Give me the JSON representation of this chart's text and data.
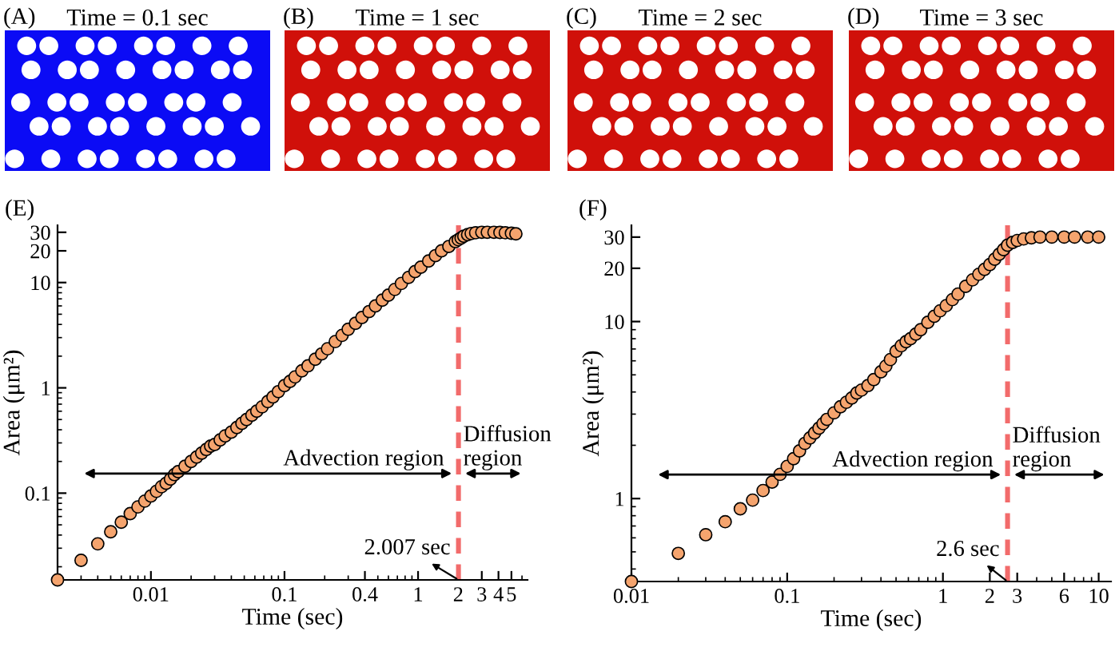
{
  "chart_data": [
    {
      "type": "other",
      "title": "Time = 0.1 sec",
      "annotations": [
        "(A)"
      ],
      "color": "#0b0bf5"
    },
    {
      "type": "other",
      "title": "Time = 1 sec",
      "annotations": [
        "(B)"
      ],
      "color": "#d0100a"
    },
    {
      "type": "other",
      "title": "Time = 2 sec",
      "annotations": [
        "(C)"
      ],
      "color": "#d0100a"
    },
    {
      "type": "other",
      "title": "Time = 3 sec",
      "annotations": [
        "(D)"
      ],
      "color": "#d0100a"
    },
    {
      "type": "scatter",
      "xlabel": "Time (sec)",
      "ylabel": "Area (μm²)",
      "annotations": [
        "(E)",
        "Advection region",
        "Diffusion\nregion"
      ],
      "color": "#f5a46e",
      "marker": "circle",
      "log": "xy",
      "x": [
        0.002,
        0.003,
        0.004,
        0.005,
        0.006,
        0.007,
        0.008,
        0.009,
        0.01,
        0.011,
        0.012,
        0.013,
        0.014,
        0.015,
        0.016,
        0.018,
        0.02,
        0.022,
        0.024,
        0.026,
        0.028,
        0.03,
        0.033,
        0.036,
        0.04,
        0.044,
        0.048,
        0.052,
        0.057,
        0.062,
        0.068,
        0.075,
        0.082,
        0.09,
        0.1,
        0.11,
        0.12,
        0.135,
        0.15,
        0.17,
        0.19,
        0.21,
        0.24,
        0.27,
        0.3,
        0.34,
        0.38,
        0.43,
        0.48,
        0.54,
        0.6,
        0.67,
        0.75,
        0.85,
        0.95,
        1.05,
        1.2,
        1.35,
        1.5,
        1.7,
        1.9,
        2.0,
        2.1,
        2.2,
        2.35,
        2.5,
        2.7,
        3,
        3.3,
        3.7,
        4.1,
        4.5,
        5,
        5.4
      ],
      "values": [
        0.015,
        0.023,
        0.033,
        0.043,
        0.053,
        0.064,
        0.074,
        0.084,
        0.094,
        0.104,
        0.115,
        0.124,
        0.136,
        0.15,
        0.16,
        0.18,
        0.2,
        0.22,
        0.24,
        0.26,
        0.28,
        0.29,
        0.32,
        0.35,
        0.38,
        0.42,
        0.46,
        0.5,
        0.55,
        0.6,
        0.66,
        0.74,
        0.82,
        0.92,
        1.05,
        1.15,
        1.27,
        1.45,
        1.62,
        1.87,
        2.1,
        2.35,
        2.75,
        3.15,
        3.6,
        4.1,
        4.65,
        5.3,
        6.0,
        6.8,
        7.6,
        8.6,
        9.8,
        11.2,
        12.7,
        14,
        16,
        18,
        20,
        22,
        24.5,
        25.5,
        26.5,
        27.5,
        28.5,
        29.2,
        29.7,
        30,
        30,
        30,
        29.9,
        29.7,
        29.4,
        29
      ],
      "xlim": [
        0.002,
        6.6
      ],
      "ylim": [
        0.015,
        35
      ],
      "xticks": [
        0.01,
        0.1,
        0.4,
        1,
        2,
        3,
        4,
        5
      ],
      "yticks": [
        0.1,
        1,
        10,
        20,
        30
      ],
      "ref_lines": [
        {
          "axis": "x",
          "value": 2.007,
          "label": "2.007 sec",
          "color": "#f26b6b",
          "line_style": "dashed"
        }
      ]
    },
    {
      "type": "scatter",
      "xlabel": "Time (sec)",
      "ylabel": "Area (μm²)",
      "annotations": [
        "(F)",
        "Advection region",
        "Diffusion\nregion"
      ],
      "color": "#f5a46e",
      "marker": "circle",
      "log": "xy",
      "x": [
        0.01,
        0.02,
        0.03,
        0.04,
        0.05,
        0.06,
        0.07,
        0.08,
        0.09,
        0.1,
        0.11,
        0.12,
        0.13,
        0.14,
        0.15,
        0.16,
        0.17,
        0.18,
        0.2,
        0.22,
        0.24,
        0.26,
        0.28,
        0.3,
        0.33,
        0.36,
        0.4,
        0.43,
        0.46,
        0.5,
        0.54,
        0.58,
        0.62,
        0.67,
        0.72,
        0.8,
        0.88,
        0.96,
        1.05,
        1.15,
        1.25,
        1.4,
        1.55,
        1.7,
        1.85,
        2.0,
        2.15,
        2.3,
        2.45,
        2.6,
        2.8,
        3.0,
        3.3,
        3.7,
        4.2,
        5,
        6,
        7,
        8.5,
        10
      ],
      "values": [
        0.34,
        0.49,
        0.625,
        0.74,
        0.875,
        0.98,
        1.11,
        1.24,
        1.37,
        1.52,
        1.68,
        1.86,
        2.05,
        2.2,
        2.35,
        2.5,
        2.65,
        2.8,
        3.05,
        3.3,
        3.5,
        3.7,
        3.95,
        4.1,
        4.35,
        4.7,
        5.2,
        5.6,
        6.1,
        6.8,
        7.3,
        7.7,
        8.0,
        8.5,
        9.0,
        9.9,
        10.7,
        11.5,
        12.3,
        13.3,
        14.3,
        15.8,
        17.2,
        18.5,
        19.7,
        21,
        22.5,
        24,
        25.5,
        27,
        28,
        28.7,
        29.3,
        29.7,
        30,
        30,
        30,
        30,
        30,
        30
      ],
      "xlim": [
        0.01,
        12
      ],
      "ylim": [
        0.34,
        35
      ],
      "xticks": [
        0.01,
        0.1,
        1,
        2,
        3,
        6,
        10
      ],
      "yticks": [
        1,
        10,
        20,
        30
      ],
      "ref_lines": [
        {
          "axis": "x",
          "value": 2.6,
          "label": "2.6 sec",
          "color": "#f26b6b",
          "line_style": "dashed"
        }
      ]
    }
  ]
}
